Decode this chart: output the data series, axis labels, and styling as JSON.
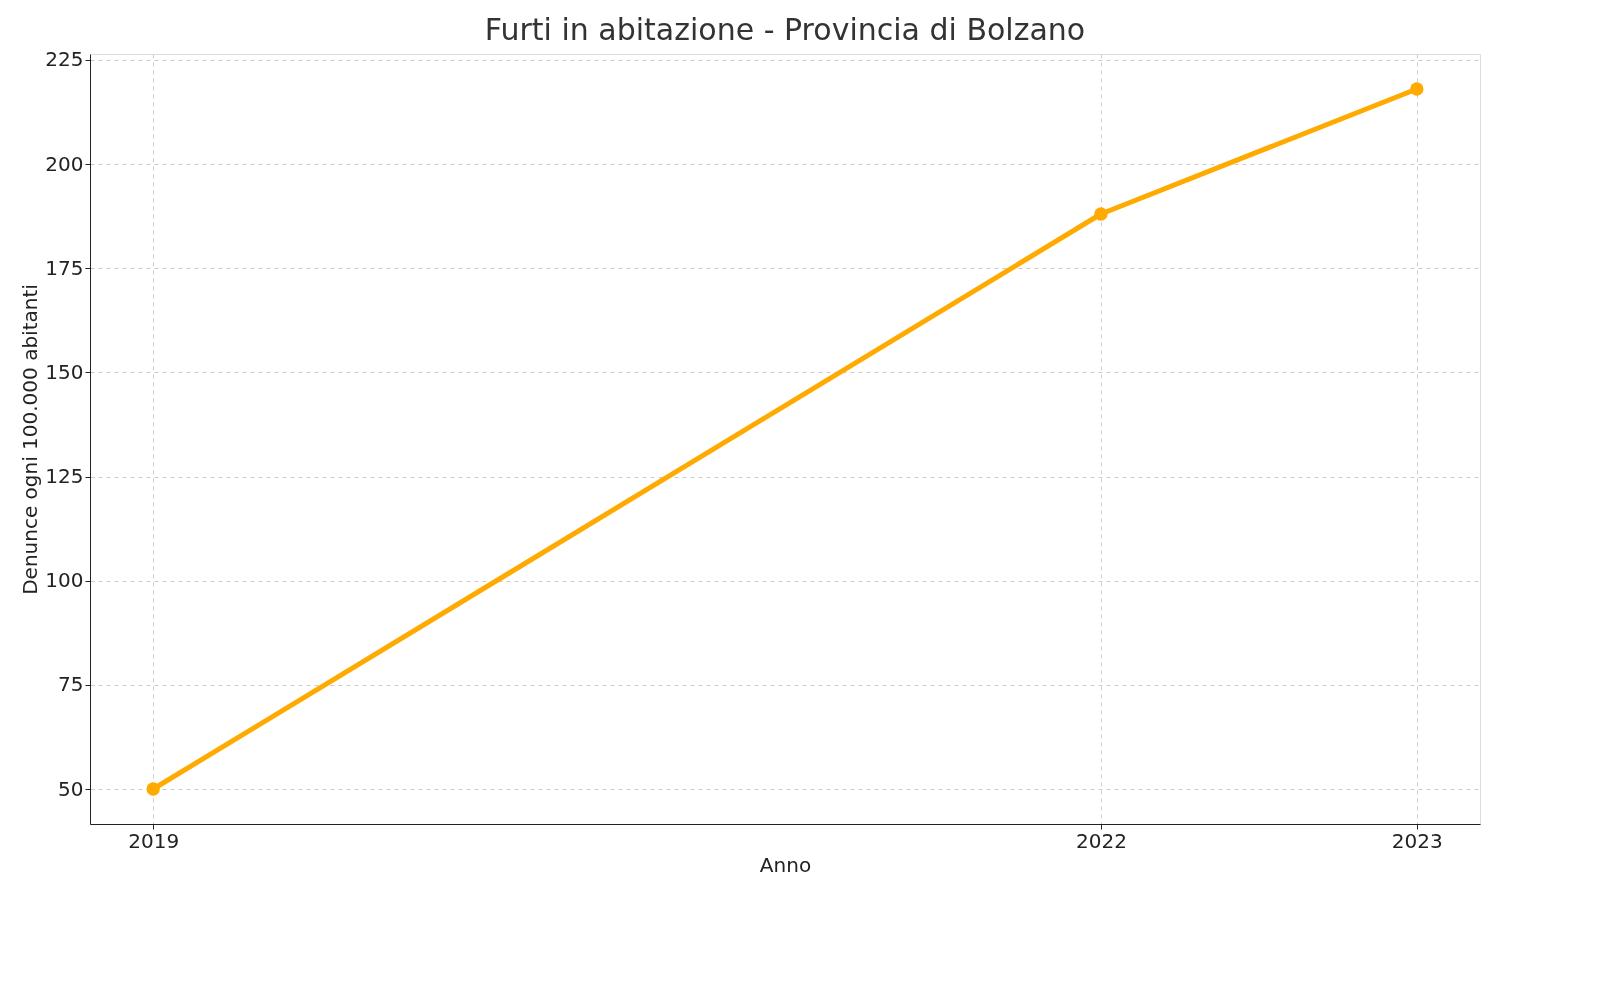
{
  "chart_data": {
    "type": "line",
    "title": "Furti in abitazione - Provincia di Bolzano",
    "xlabel": "Anno",
    "ylabel": "Denunce ogni 100.000 abitanti",
    "x": [
      2019,
      2022,
      2023
    ],
    "series": [
      {
        "color": "#ffaa00",
        "values": [
          50,
          188,
          218
        ]
      }
    ],
    "xlim": [
      2018.8,
      2023.2
    ],
    "xticks": [
      2019,
      2022,
      2023
    ],
    "ylim": [
      41.6,
      226.4
    ],
    "yticks": [
      50,
      75,
      100,
      125,
      150,
      175,
      200,
      225
    ],
    "grid": true,
    "marker": "circle",
    "line_style": "solid"
  }
}
